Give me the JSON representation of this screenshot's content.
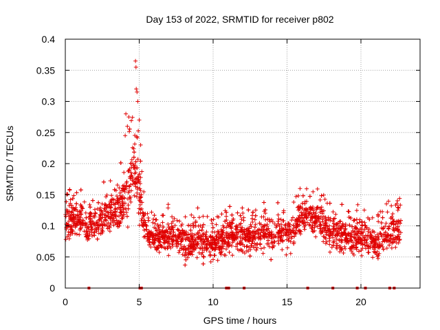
{
  "chart_data": {
    "type": "scatter",
    "title": "Day 153 of 2022, SRMTID for receiver p802",
    "xlabel": "GPS time / hours",
    "ylabel": "SRMTID / TECUs",
    "xlim": [
      0,
      24
    ],
    "ylim": [
      0,
      0.4
    ],
    "xticks": [
      0,
      5,
      10,
      15,
      20
    ],
    "xtick_labels": [
      "0",
      "5",
      "10",
      "15",
      "20"
    ],
    "yticks": [
      0,
      0.05,
      0.1,
      0.15,
      0.2,
      0.25,
      0.3,
      0.35,
      0.4
    ],
    "ytick_labels": [
      "0",
      "0.05",
      "0.1",
      "0.15",
      "0.2",
      "0.25",
      "0.3",
      "0.35",
      "0.4"
    ],
    "grid": true,
    "marker": "plus",
    "series_color": "#e00000",
    "data_extent_hours": [
      0,
      22.7
    ],
    "series": [
      {
        "name": "SRMTID",
        "envelope": {
          "hours": [
            0,
            0.5,
            1,
            1.5,
            2,
            2.5,
            3,
            3.5,
            4,
            4.3,
            4.6,
            4.8,
            5,
            5.2,
            5.5,
            6,
            6.5,
            7,
            7.5,
            8,
            8.5,
            9,
            9.5,
            10,
            10.5,
            11,
            11.5,
            12,
            12.5,
            13,
            13.5,
            14,
            14.5,
            15,
            15.5,
            16,
            16.5,
            17,
            17.5,
            18,
            18.5,
            19,
            19.5,
            20,
            20.5,
            21,
            21.5,
            22,
            22.5,
            22.7
          ],
          "center": [
            0.105,
            0.11,
            0.11,
            0.1,
            0.105,
            0.11,
            0.12,
            0.13,
            0.145,
            0.16,
            0.18,
            0.19,
            0.16,
            0.12,
            0.09,
            0.085,
            0.08,
            0.085,
            0.08,
            0.075,
            0.075,
            0.08,
            0.075,
            0.07,
            0.075,
            0.08,
            0.09,
            0.085,
            0.08,
            0.085,
            0.09,
            0.085,
            0.09,
            0.09,
            0.095,
            0.11,
            0.12,
            0.11,
            0.1,
            0.09,
            0.085,
            0.08,
            0.08,
            0.085,
            0.075,
            0.07,
            0.08,
            0.09,
            0.095,
            0.09
          ],
          "spread": [
            0.035,
            0.035,
            0.035,
            0.03,
            0.035,
            0.04,
            0.04,
            0.045,
            0.05,
            0.06,
            0.07,
            0.08,
            0.06,
            0.04,
            0.03,
            0.03,
            0.03,
            0.035,
            0.035,
            0.035,
            0.035,
            0.035,
            0.03,
            0.03,
            0.03,
            0.035,
            0.04,
            0.035,
            0.03,
            0.03,
            0.035,
            0.035,
            0.035,
            0.035,
            0.035,
            0.04,
            0.035,
            0.035,
            0.035,
            0.035,
            0.035,
            0.035,
            0.035,
            0.035,
            0.03,
            0.03,
            0.035,
            0.04,
            0.04,
            0.035
          ]
        },
        "peaks": [
          {
            "x": 4.75,
            "y": 0.365
          },
          {
            "x": 4.78,
            "y": 0.355
          },
          {
            "x": 4.8,
            "y": 0.32
          },
          {
            "x": 4.85,
            "y": 0.315
          },
          {
            "x": 4.9,
            "y": 0.3
          },
          {
            "x": 4.1,
            "y": 0.28
          },
          {
            "x": 4.3,
            "y": 0.275
          },
          {
            "x": 5.0,
            "y": 0.27
          },
          {
            "x": 4.2,
            "y": 0.26
          },
          {
            "x": 4.05,
            "y": 0.245
          },
          {
            "x": 5.1,
            "y": 0.23
          }
        ],
        "zero_points_hours": [
          1.6,
          5.05,
          5.15,
          10.9,
          11.05,
          12.1,
          16.4,
          18.1,
          19.75,
          20.3,
          21.95,
          22.25
        ]
      }
    ]
  }
}
